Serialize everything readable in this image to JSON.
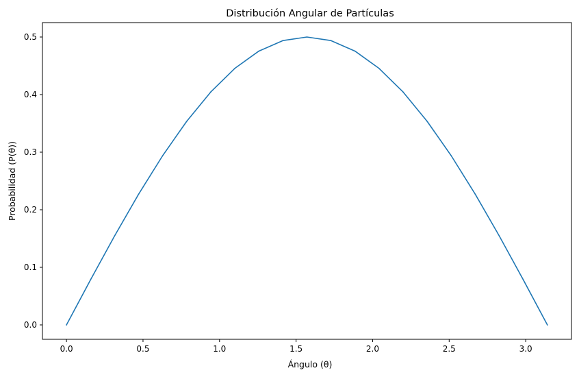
{
  "chart_data": {
    "type": "line",
    "title": "Distribución Angular de Partículas",
    "xlabel": "Ángulo (θ)",
    "ylabel": "Probabilidad (P(θ))",
    "xlim": [
      -0.157,
      3.299
    ],
    "ylim": [
      -0.025,
      0.525
    ],
    "xticks": [
      0.0,
      0.5,
      1.0,
      1.5,
      2.0,
      2.5,
      3.0
    ],
    "xtick_labels": [
      "0.0",
      "0.5",
      "1.0",
      "1.5",
      "2.0",
      "2.5",
      "3.0"
    ],
    "yticks": [
      0.0,
      0.1,
      0.2,
      0.3,
      0.4,
      0.5
    ],
    "ytick_labels": [
      "0.0",
      "0.1",
      "0.2",
      "0.3",
      "0.4",
      "0.5"
    ],
    "grid": false,
    "legend": false,
    "series": [
      {
        "color": "#1f77b4",
        "x": [
          0.0,
          0.1571,
          0.3142,
          0.4712,
          0.6283,
          0.7854,
          0.9425,
          1.0996,
          1.2566,
          1.4137,
          1.5708,
          1.7279,
          1.885,
          2.042,
          2.1991,
          2.3562,
          2.5133,
          2.6704,
          2.8274,
          2.9845,
          3.1416
        ],
        "y": [
          0.0,
          0.0782,
          0.1545,
          0.227,
          0.2939,
          0.3536,
          0.4045,
          0.4455,
          0.4755,
          0.4938,
          0.5,
          0.4938,
          0.4755,
          0.4455,
          0.4045,
          0.3536,
          0.2939,
          0.227,
          0.1545,
          0.0782,
          0.0
        ]
      }
    ]
  }
}
